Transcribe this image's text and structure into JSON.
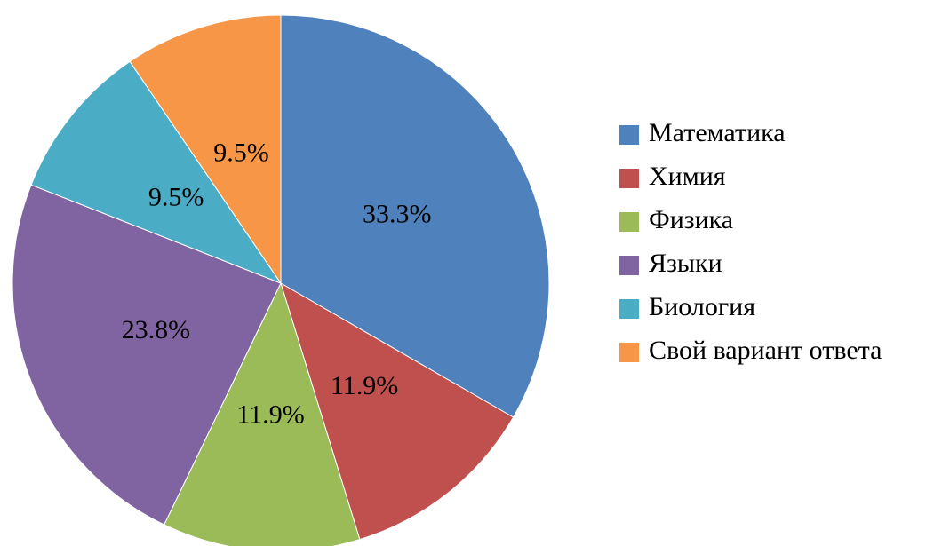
{
  "chart_data": {
    "type": "pie",
    "categories": [
      "Математика",
      "Химия",
      "Физика",
      "Языки",
      "Биология",
      "Свой вариант ответа"
    ],
    "values": [
      33.3,
      11.9,
      11.9,
      23.8,
      9.5,
      9.5
    ],
    "value_labels": [
      "33.3%",
      "11.9%",
      "11.9%",
      "23.8%",
      "9.5%",
      "9.5%"
    ],
    "colors": [
      "#4f81bd",
      "#c0504d",
      "#9bbb59",
      "#8064a2",
      "#4bacc6",
      "#f79646"
    ]
  }
}
